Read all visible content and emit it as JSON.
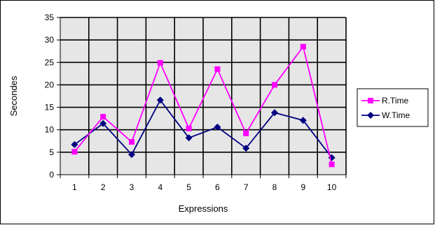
{
  "chart_data": {
    "type": "line",
    "title": "",
    "xlabel": "Expressions",
    "ylabel": "Secondes",
    "categories": [
      "1",
      "2",
      "3",
      "4",
      "5",
      "6",
      "7",
      "8",
      "9",
      "10"
    ],
    "ylim": [
      0,
      35
    ],
    "yticks": [
      "0",
      "5",
      "10",
      "15",
      "20",
      "25",
      "30",
      "35"
    ],
    "grid": true,
    "legend_position": "right",
    "series": [
      {
        "name": "R.Time",
        "color": "#ff00ff",
        "marker": "square",
        "values": [
          5.1,
          12.9,
          7.3,
          24.9,
          10.3,
          23.5,
          9.2,
          20.0,
          28.5,
          2.3
        ]
      },
      {
        "name": "W.Time",
        "color": "#000080",
        "marker": "diamond",
        "values": [
          6.7,
          11.4,
          4.5,
          16.6,
          8.2,
          10.6,
          5.9,
          13.8,
          12.1,
          3.8
        ]
      }
    ],
    "colors": {
      "plot_background": "#e6e6e6",
      "grid": "#000000"
    }
  }
}
